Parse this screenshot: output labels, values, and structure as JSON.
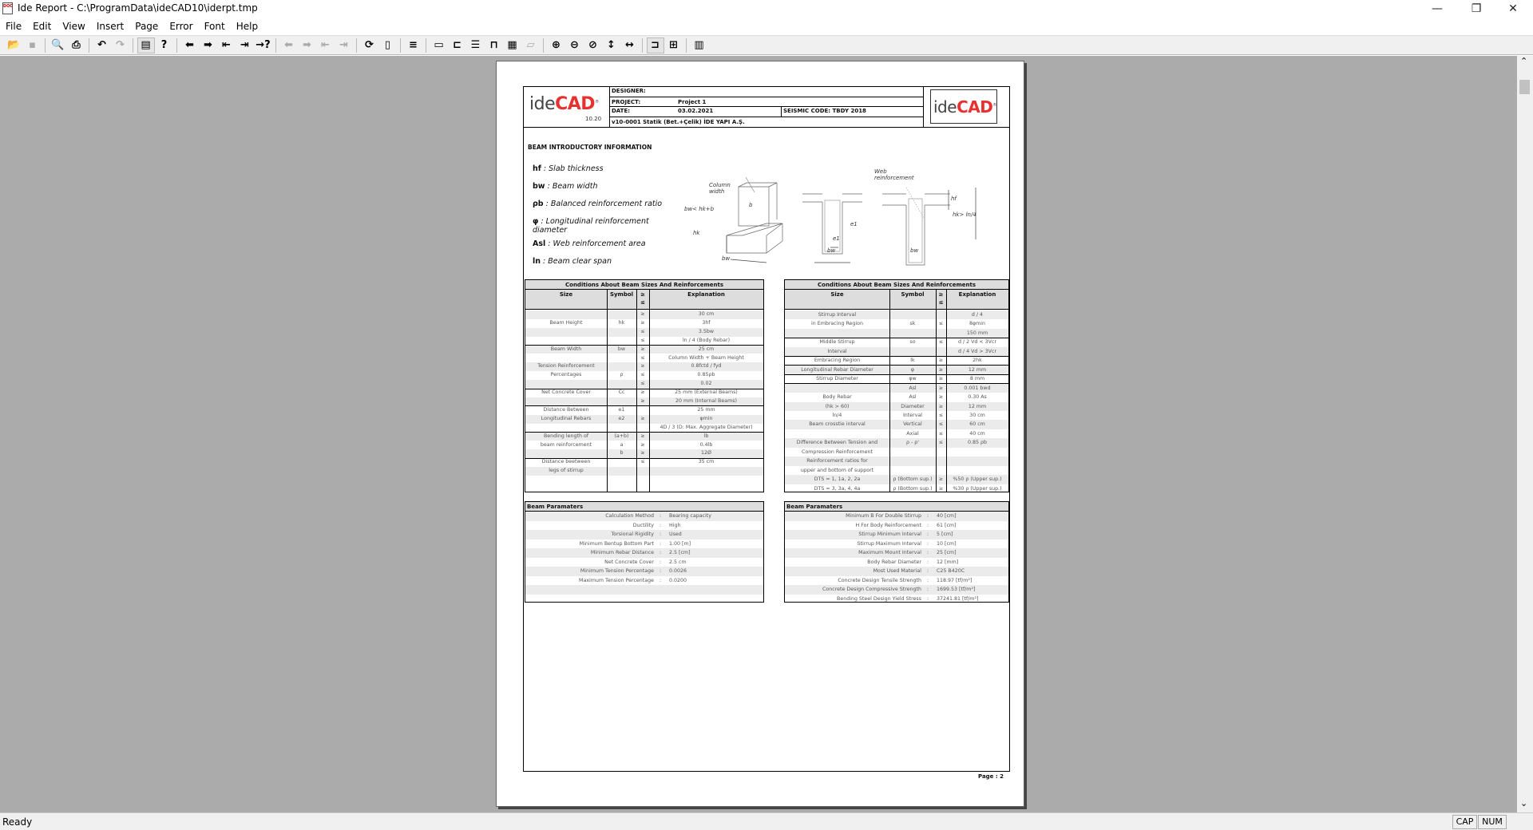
{
  "window": {
    "title": "Ide Report - C:\\ProgramData\\ideCAD10\\iderpt.tmp",
    "app_icon_text": "DOC",
    "minimize": "—",
    "restore": "❐",
    "close": "✕"
  },
  "menu": [
    "File",
    "Edit",
    "View",
    "Insert",
    "Page",
    "Error",
    "Font",
    "Help"
  ],
  "toolbar": [
    {
      "icon": "open-folder-icon",
      "glyph": "📂",
      "state": "enabled"
    },
    {
      "icon": "save-icon",
      "glyph": "▪",
      "state": "disabled"
    },
    "sep",
    {
      "icon": "print-preview-icon",
      "glyph": "🔍",
      "state": "enabled"
    },
    {
      "icon": "print-icon",
      "glyph": "⎙",
      "state": "enabled"
    },
    "sep",
    {
      "icon": "undo-icon",
      "glyph": "↶",
      "state": "enabled"
    },
    {
      "icon": "redo-icon",
      "glyph": "↷",
      "state": "disabled"
    },
    "sep",
    {
      "icon": "report-page-icon",
      "glyph": "▤",
      "state": "active"
    },
    {
      "icon": "help-context-icon",
      "glyph": "?",
      "state": "enabled"
    },
    "sep",
    {
      "icon": "previous-icon",
      "glyph": "⬅",
      "state": "enabled"
    },
    {
      "icon": "next-icon",
      "glyph": "➡",
      "state": "enabled"
    },
    {
      "icon": "first-icon",
      "glyph": "⇤",
      "state": "enabled"
    },
    {
      "icon": "last-icon",
      "glyph": "⇥",
      "state": "enabled"
    },
    {
      "icon": "goto-icon",
      "glyph": "→?",
      "state": "enabled"
    },
    "sep",
    {
      "icon": "error-previous-icon",
      "glyph": "⬅",
      "state": "disabled"
    },
    {
      "icon": "error-next-icon",
      "glyph": "➡",
      "state": "disabled"
    },
    {
      "icon": "error-first-icon",
      "glyph": "⇤",
      "state": "disabled"
    },
    {
      "icon": "error-last-icon",
      "glyph": "⇥",
      "state": "disabled"
    },
    "sep",
    {
      "icon": "refresh-page-icon",
      "glyph": "⟳",
      "state": "enabled"
    },
    {
      "icon": "page-end-icon",
      "glyph": "▯",
      "state": "enabled"
    },
    "sep",
    {
      "icon": "page-sort-icon",
      "glyph": "≡",
      "state": "enabled"
    },
    "sep",
    {
      "icon": "header-icon",
      "glyph": "▭",
      "state": "enabled"
    },
    {
      "icon": "left-margin-icon",
      "glyph": "⊏",
      "state": "enabled"
    },
    {
      "icon": "body-lines-icon",
      "glyph": "☰",
      "state": "enabled"
    },
    {
      "icon": "top-margin-icon",
      "glyph": "⊓",
      "state": "enabled"
    },
    {
      "icon": "grid-icon",
      "glyph": "▦",
      "state": "enabled"
    },
    {
      "icon": "step-icon",
      "glyph": "▱",
      "state": "disabled"
    },
    "sep",
    {
      "icon": "zoom-in-icon",
      "glyph": "⊕",
      "state": "enabled"
    },
    {
      "icon": "zoom-out-icon",
      "glyph": "⊖",
      "state": "enabled"
    },
    {
      "icon": "zoom-fit-icon",
      "glyph": "⊘",
      "state": "enabled"
    },
    {
      "icon": "fit-height-icon",
      "glyph": "↕",
      "state": "enabled"
    },
    {
      "icon": "fit-width-icon",
      "glyph": "↔",
      "state": "enabled"
    },
    "sep",
    {
      "icon": "single-page-icon",
      "glyph": "⊐",
      "state": "active"
    },
    {
      "icon": "two-page-icon",
      "glyph": "⊞",
      "state": "enabled"
    },
    "sep",
    {
      "icon": "columns-icon",
      "glyph": "▥",
      "state": "enabled"
    }
  ],
  "header": {
    "logo_left": {
      "ide": "ide",
      "cad": "CAD",
      "reg": "®",
      "version": "10.20"
    },
    "designer_label": "DESIGNER:",
    "project_label": "PROJECT:",
    "project_value": "Project 1",
    "date_label": "DATE:",
    "date_value": "03.02.2021",
    "seismic_code": "SEISMIC CODE: TBDY 2018",
    "program_line": "v10-0001 Statik (Bet.+Çelik) İDE YAPI A.Ş.",
    "logo_right": {
      "ide": "ide",
      "cad": "CAD",
      "reg": "®"
    }
  },
  "intro": {
    "title": "BEAM INTRODUCTORY INFORMATION",
    "definitions": [
      {
        "symbol": "hf",
        "text": " : Slab thickness"
      },
      {
        "symbol": "bw",
        "text": " : Beam width"
      },
      {
        "symbol": "ρb",
        "text": " : Balanced reinforcement ratio"
      },
      {
        "symbol": "φ",
        "text": " : Longitudinal reinforcement diameter"
      },
      {
        "symbol": "Asl",
        "text": " : Web reinforcement area"
      },
      {
        "symbol": "ln",
        "text": " : Beam clear span"
      }
    ],
    "diagram_labels": {
      "column_width": "Column width",
      "b": "b",
      "bw_rule": "bw< hk+b",
      "hk": "hk",
      "bw1": "bw",
      "e1a": "e1",
      "e1b": "e1",
      "bw2": "bw",
      "web": "Web reinforcement",
      "hf": "hf",
      "hk_rule": "hk> ln/4",
      "bw3": "bw"
    }
  },
  "left_table": {
    "title": "Conditions About Beam Sizes And Reinforcements",
    "headers": [
      "Size",
      "Symbol",
      "≥\n≤",
      "Explanation"
    ],
    "groups": [
      [
        [
          "",
          "",
          "≥",
          "30 cm"
        ],
        [
          "Beam Height",
          "hk",
          "≥",
          "3hf"
        ],
        [
          "",
          "",
          "≤",
          "3.5bw"
        ],
        [
          "",
          "",
          "≤",
          "ln / 4 (Body Rebar)"
        ]
      ],
      [
        [
          "Beam Width",
          "bw",
          "≥",
          "25 cm"
        ],
        [
          "",
          "",
          "≤",
          "Column Width + Beam Height"
        ]
      ],
      [
        [
          "Tension Reinforcement",
          "",
          "≥",
          "0.8fctd / fyd"
        ],
        [
          "Percentages",
          "ρ",
          "≤",
          "0.85ρb"
        ],
        [
          "",
          "",
          "≤",
          "0.02"
        ]
      ],
      [
        [
          "Net Concrete Cover",
          "Cc",
          "≥",
          "25 mm (External Beams)"
        ],
        [
          "",
          "",
          "≥",
          "20 mm (Internal Beams)"
        ]
      ],
      [
        [
          "Distance Between",
          "e1",
          "",
          "25 mm"
        ],
        [
          "Longitudinal Rebars",
          "e2",
          "≥",
          "φmin"
        ],
        [
          "",
          "",
          "",
          "4D / 3 (D: Max. Aggregate Diameter)"
        ]
      ],
      [
        [
          "Bending length of",
          "(a+b)",
          "≥",
          "lb"
        ],
        [
          "beam reinforcement",
          "a",
          "≥",
          "0.4lb"
        ],
        [
          "",
          "b",
          "≥",
          "12Ø"
        ]
      ],
      [
        [
          "Distance beetween",
          "",
          "≤",
          "35 cm"
        ],
        [
          "legs of stirrup",
          "",
          "",
          ""
        ],
        [
          "",
          "",
          "",
          ""
        ]
      ]
    ]
  },
  "right_table": {
    "title": "Conditions About Beam Sizes And Reinforcements",
    "headers": [
      "Size",
      "Symbol",
      "≥\n≤",
      "Explanation"
    ],
    "groups": [
      [
        [
          "Stirrup Interval",
          "",
          "",
          "d / 4"
        ],
        [
          "in Embracing Region",
          "sk",
          "≤",
          "8φmin"
        ],
        [
          "",
          "",
          "",
          "150 mm"
        ]
      ],
      [
        [
          "Middle Stirrup",
          "so",
          "≤",
          "d / 2 Vd < 3Vcr"
        ],
        [
          "Interval",
          "",
          "",
          "d / 4 Vd > 3Vcr"
        ]
      ],
      [
        [
          "Embracing Region",
          "lk",
          "≥",
          "2hk"
        ]
      ],
      [
        [
          "Longitudinal Rebar Diameter",
          "φ",
          "≥",
          "12 mm"
        ]
      ],
      [
        [
          "Stirrup Diameter",
          "φw",
          "≥",
          "8 mm"
        ]
      ],
      [
        [
          "",
          "Asl",
          "≥",
          "0.001 bwd"
        ],
        [
          "Body Rebar",
          "Asl",
          "≥",
          "0.30 As"
        ],
        [
          "(hk > 60)",
          "Diameter",
          "≥",
          "12 mm"
        ],
        [
          "ln/4",
          "Interval",
          "≤",
          "30 cm"
        ],
        [
          "Beam crosstie interval",
          "Vertical",
          "≤",
          "60 cm"
        ],
        [
          "",
          "Axial",
          "≤",
          "40 cm"
        ]
      ],
      [
        [
          "Difference Between Tension and",
          "ρ - ρ'",
          "≤",
          "0.85 ρb"
        ],
        [
          "Compression Reinforcement",
          "",
          "",
          ""
        ]
      ],
      [
        [
          "Reinforcement ratios for",
          "",
          "",
          ""
        ],
        [
          "upper and bottom of support",
          "",
          "",
          ""
        ],
        [
          "DTS = 1, 1a, 2, 2a",
          "ρ (Bottom sup.)",
          "≥",
          "%50 ρ (Upper sup.)"
        ],
        [
          "DTS = 3, 3a, 4, 4a",
          "ρ (Bottom sup.)",
          "≥",
          "%30 ρ (Upper sup.)"
        ]
      ]
    ]
  },
  "left_params": {
    "title": "Beam Paramaters",
    "items": [
      [
        "Calculation Method",
        "Bearing capacity"
      ],
      [
        "Ductility",
        "High"
      ],
      [
        "Torsional Rigidity",
        "Used"
      ],
      [
        "Minimum Bentup Bottom Part",
        "1.00 [m]"
      ],
      [
        "Minimum Rebar Distance",
        "2.5 [cm]"
      ],
      [
        "Net Concrete Cover",
        "2.5 cm"
      ],
      [
        "Minimum Tension Percentage",
        "0.0026"
      ],
      [
        "Maximum Tension Percentage",
        "0.0200"
      ]
    ]
  },
  "right_params": {
    "title": "Beam Paramaters",
    "items": [
      [
        "Minimum B For Double Stirrup",
        "40 [cm]"
      ],
      [
        "H For Body Reinforcement",
        "61 [cm]"
      ],
      [
        "Stirrup Minimum Interval",
        "5 [cm]"
      ],
      [
        "Stirrup Maximum Interval",
        "10 [cm]"
      ],
      [
        "Maximum Mount Interval",
        "25 [cm]"
      ],
      [
        "Body Rebar Diameter",
        "12 [mm]"
      ],
      [
        "Most Used Material",
        "C25 B420C"
      ],
      [
        "Concrete Design Tensile Strength",
        "118.97 [tf/m²]"
      ],
      [
        "Concrete Design Compressive Strength",
        "1699.53 [tf/m²]"
      ],
      [
        "Bending Steel Design Yield Stress",
        "37241.81 [tf/m²]"
      ]
    ]
  },
  "param_separator": ":",
  "page_number": "Page : 2",
  "status": {
    "text": "Ready",
    "cap": "CAP",
    "num": "NUM"
  },
  "scrollbar": {
    "up": "⌃",
    "down": "⌄"
  },
  "colors": {
    "brand_red": "#e8312f",
    "workspace": "#ababab",
    "row_shade": "#ebebeb"
  }
}
